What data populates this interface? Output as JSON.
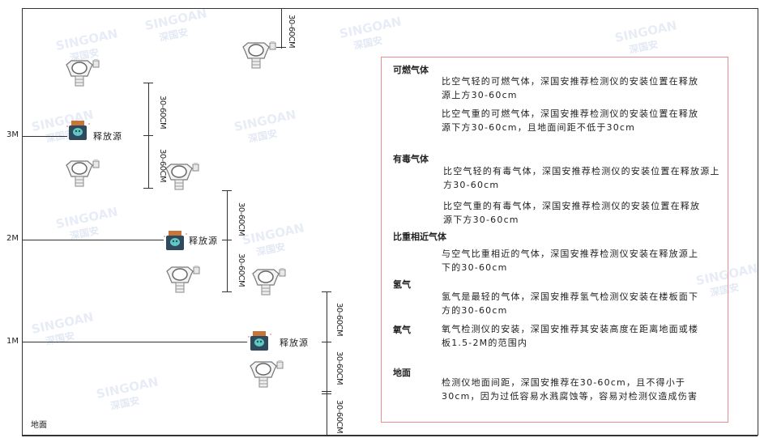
{
  "watermark": {
    "brand": "SINGOAN",
    "cn": "深国安"
  },
  "levels": {
    "m3": "3M",
    "m2": "2M",
    "m1": "1M",
    "ground": "地面"
  },
  "source_label": "释放源",
  "dimension_label": "30-60CM",
  "info": {
    "sections": [
      {
        "title": "可燃气体",
        "paras": [
          "比空气轻的可燃气体，深国安推荐检测仪的安装位置在释放源上方30-60cm",
          "比空气重的可燃气体，深国安推荐检测仪的安装位置在释放源下方30-60cm，且地面间距不低于30cm"
        ]
      },
      {
        "title": "有毒气体",
        "paras": [
          "比空气轻的有毒气体，深国安推荐检测仪的安装位置在释放源上方30-60cm",
          "比空气重的有毒气体，深国安推荐检测仪的安装位置在释放源下方30-60cm"
        ]
      },
      {
        "title": "比重相近气体",
        "paras": [
          "与空气比重相近的气体，深国安推荐检测仪安装在释放源上下的30-60cm"
        ]
      },
      {
        "title": "氢气",
        "paras": [
          "氢气是最轻的气体，深国安推荐氢气检测仪安装在楼板面下方的30-60cm"
        ]
      },
      {
        "title": "氧气",
        "paras": [
          "氧气检测仪的安装，深国安推荐其安装高度在距离地面或楼板1.5-2M的范围内"
        ]
      },
      {
        "title": "地面",
        "paras": [
          "检测仪地面间距，深国安推荐在30-60cm，且不得小于30cm，因为过低容易水溅腐蚀等，容易对检测仪造成伤害"
        ]
      }
    ]
  },
  "colors": {
    "frame": "#333333",
    "infobox_border": "#f08b8b",
    "source_body": "#2f4a5c",
    "source_cap": "#c8753a",
    "source_face": "#5fc9c4"
  }
}
